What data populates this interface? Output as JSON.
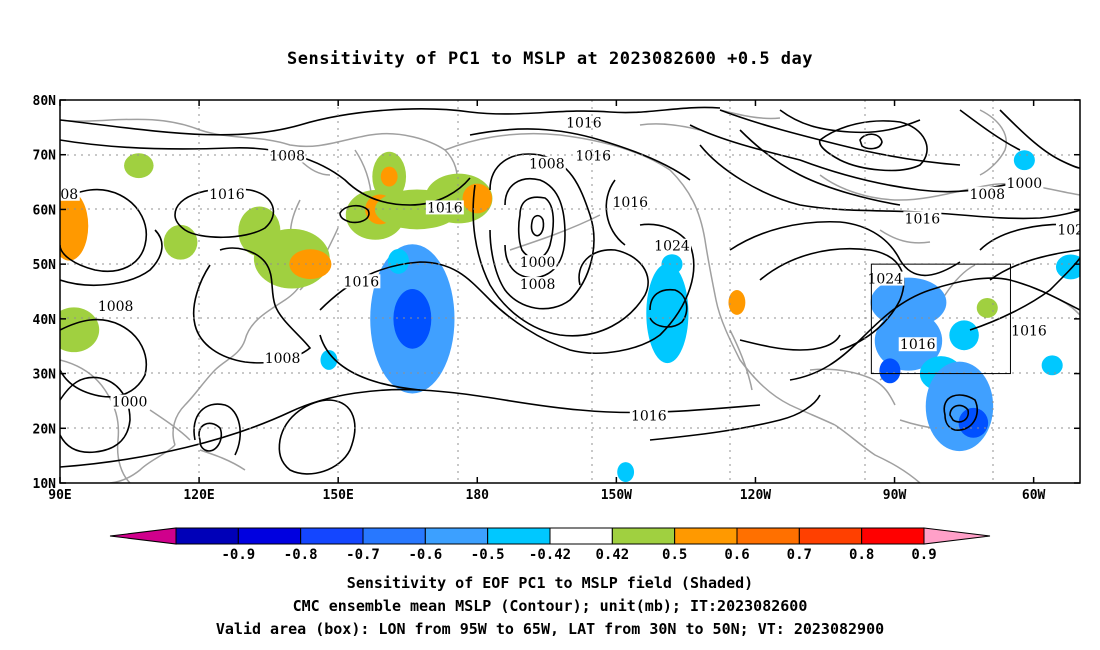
{
  "title": "Sensitivity of PC1 to MSLP at 2023082600 +0.5 day",
  "map": {
    "lon_labels": [
      "90E",
      "120E",
      "150E",
      "180",
      "150W",
      "120W",
      "90W",
      "60W"
    ],
    "lat_labels": [
      "80N",
      "70N",
      "60N",
      "50N",
      "40N",
      "30N",
      "20N",
      "10N"
    ],
    "lon_range": [
      90,
      310
    ],
    "lat_range": [
      10,
      80
    ],
    "gridlines": true,
    "valid_box": {
      "lon": [
        265,
        295
      ],
      "lat": [
        30,
        50
      ]
    },
    "contour_labels": [
      {
        "text": "1016",
        "lon": 203,
        "lat": 75.5
      },
      {
        "text": "1016",
        "lon": 205,
        "lat": 69.5
      },
      {
        "text": "1008",
        "lon": 139,
        "lat": 69.5
      },
      {
        "text": "1008",
        "lon": 195,
        "lat": 68
      },
      {
        "text": "08",
        "lon": 92,
        "lat": 62.5
      },
      {
        "text": "1016",
        "lon": 126,
        "lat": 62.5
      },
      {
        "text": "1016",
        "lon": 173,
        "lat": 60
      },
      {
        "text": "1016",
        "lon": 213,
        "lat": 61
      },
      {
        "text": "1008",
        "lon": 290,
        "lat": 62.5
      },
      {
        "text": "1000",
        "lon": 298,
        "lat": 64.5
      },
      {
        "text": "1016",
        "lon": 276,
        "lat": 58
      },
      {
        "text": "102",
        "lon": 308,
        "lat": 56
      },
      {
        "text": "1024",
        "lon": 222,
        "lat": 53
      },
      {
        "text": "1000",
        "lon": 193,
        "lat": 50
      },
      {
        "text": "1008",
        "lon": 193,
        "lat": 46
      },
      {
        "text": "1024",
        "lon": 268,
        "lat": 47
      },
      {
        "text": "1016",
        "lon": 155,
        "lat": 46.5
      },
      {
        "text": "1008",
        "lon": 102,
        "lat": 42
      },
      {
        "text": "1016",
        "lon": 275,
        "lat": 35
      },
      {
        "text": "1016",
        "lon": 299,
        "lat": 37.5
      },
      {
        "text": "1008",
        "lon": 138,
        "lat": 32.5
      },
      {
        "text": "1000",
        "lon": 105,
        "lat": 24.5
      },
      {
        "text": "1016",
        "lon": 217,
        "lat": 22
      }
    ],
    "shading": [
      {
        "lon": 107,
        "lat": 68,
        "rx": 7,
        "ry": 5,
        "color": "#a0d040"
      },
      {
        "lon": 161,
        "lat": 66,
        "rx": 8,
        "ry": 10,
        "color": "#a0d040"
      },
      {
        "lon": 161,
        "lat": 66,
        "rx": 4,
        "ry": 4,
        "color": "#ff9900"
      },
      {
        "lon": 92,
        "lat": 57,
        "rx": 9,
        "ry": 14,
        "color": "#ff9900"
      },
      {
        "lon": 116,
        "lat": 54,
        "rx": 8,
        "ry": 7,
        "color": "#a0d040"
      },
      {
        "lon": 133,
        "lat": 56,
        "rx": 10,
        "ry": 10,
        "color": "#a0d040"
      },
      {
        "lon": 140,
        "lat": 51,
        "rx": 18,
        "ry": 12,
        "color": "#a0d040"
      },
      {
        "lon": 144,
        "lat": 50,
        "rx": 10,
        "ry": 6,
        "color": "#ff9900"
      },
      {
        "lon": 158,
        "lat": 59,
        "rx": 14,
        "ry": 10,
        "color": "#a0d040"
      },
      {
        "lon": 159,
        "lat": 60,
        "rx": 7,
        "ry": 6,
        "color": "#ff9900"
      },
      {
        "lon": 167,
        "lat": 60,
        "rx": 20,
        "ry": 8,
        "color": "#a0d040"
      },
      {
        "lon": 176,
        "lat": 62,
        "rx": 16,
        "ry": 10,
        "color": "#a0d040"
      },
      {
        "lon": 180,
        "lat": 62,
        "rx": 7,
        "ry": 6,
        "color": "#ff9900"
      },
      {
        "lon": 93,
        "lat": 38,
        "rx": 12,
        "ry": 9,
        "color": "#a0d040"
      },
      {
        "lon": 166,
        "lat": 40,
        "rx": 20,
        "ry": 30,
        "color": "#40a0ff"
      },
      {
        "lon": 166,
        "lat": 40,
        "rx": 9,
        "ry": 12,
        "color": "#0050ff"
      },
      {
        "lon": 163,
        "lat": 50.5,
        "rx": 5,
        "ry": 5,
        "color": "#00c8ff"
      },
      {
        "lon": 221,
        "lat": 41,
        "rx": 10,
        "ry": 20,
        "color": "#00c8ff"
      },
      {
        "lon": 222,
        "lat": 50,
        "rx": 5,
        "ry": 4,
        "color": "#00c8ff"
      },
      {
        "lon": 236,
        "lat": 43,
        "rx": 4,
        "ry": 5,
        "color": "#ff9900"
      },
      {
        "lon": 273,
        "lat": 43,
        "rx": 18,
        "ry": 10,
        "color": "#40a0ff"
      },
      {
        "lon": 273,
        "lat": 36,
        "rx": 16,
        "ry": 12,
        "color": "#40a0ff"
      },
      {
        "lon": 285,
        "lat": 37,
        "rx": 7,
        "ry": 6,
        "color": "#00c8ff"
      },
      {
        "lon": 280,
        "lat": 30,
        "rx": 10,
        "ry": 7,
        "color": "#00c8ff"
      },
      {
        "lon": 284,
        "lat": 24,
        "rx": 16,
        "ry": 18,
        "color": "#40a0ff"
      },
      {
        "lon": 287,
        "lat": 21,
        "rx": 7,
        "ry": 6,
        "color": "#0050ff"
      },
      {
        "lon": 269,
        "lat": 30.5,
        "rx": 5,
        "ry": 5,
        "color": "#0050ff"
      },
      {
        "lon": 290,
        "lat": 42,
        "rx": 5,
        "ry": 4,
        "color": "#a0d040"
      },
      {
        "lon": 298,
        "lat": 69,
        "rx": 5,
        "ry": 4,
        "color": "#00c8ff"
      },
      {
        "lon": 308,
        "lat": 49.5,
        "rx": 7,
        "ry": 5,
        "color": "#00c8ff"
      },
      {
        "lon": 304,
        "lat": 31.5,
        "rx": 5,
        "ry": 4,
        "color": "#00c8ff"
      },
      {
        "lon": 212,
        "lat": 12,
        "rx": 4,
        "ry": 4,
        "color": "#00c8ff"
      },
      {
        "lon": 148,
        "lat": 32.5,
        "rx": 4,
        "ry": 4,
        "color": "#00c8ff"
      }
    ]
  },
  "colorbar": {
    "colors": [
      "#d0008c",
      "#0000b8",
      "#0000e0",
      "#1446ff",
      "#2878ff",
      "#3ca0ff",
      "#00c8ff",
      "#ffffff",
      "#a0d040",
      "#ff9900",
      "#ff7000",
      "#ff4000",
      "#ff0000",
      "#ffa0c8"
    ],
    "labels": [
      "-0.9",
      "-0.8",
      "-0.7",
      "-0.6",
      "-0.5",
      "-0.42",
      "0.42",
      "0.5",
      "0.6",
      "0.7",
      "0.8",
      "0.9"
    ]
  },
  "captions": {
    "line1": "Sensitivity of EOF PC1 to MSLP field (Shaded)",
    "line2": "CMC ensemble mean MSLP (Contour); unit(mb); IT:2023082600",
    "line3": "Valid area (box): LON from 95W to 65W, LAT from 30N to 50N; VT: 2023082900"
  }
}
